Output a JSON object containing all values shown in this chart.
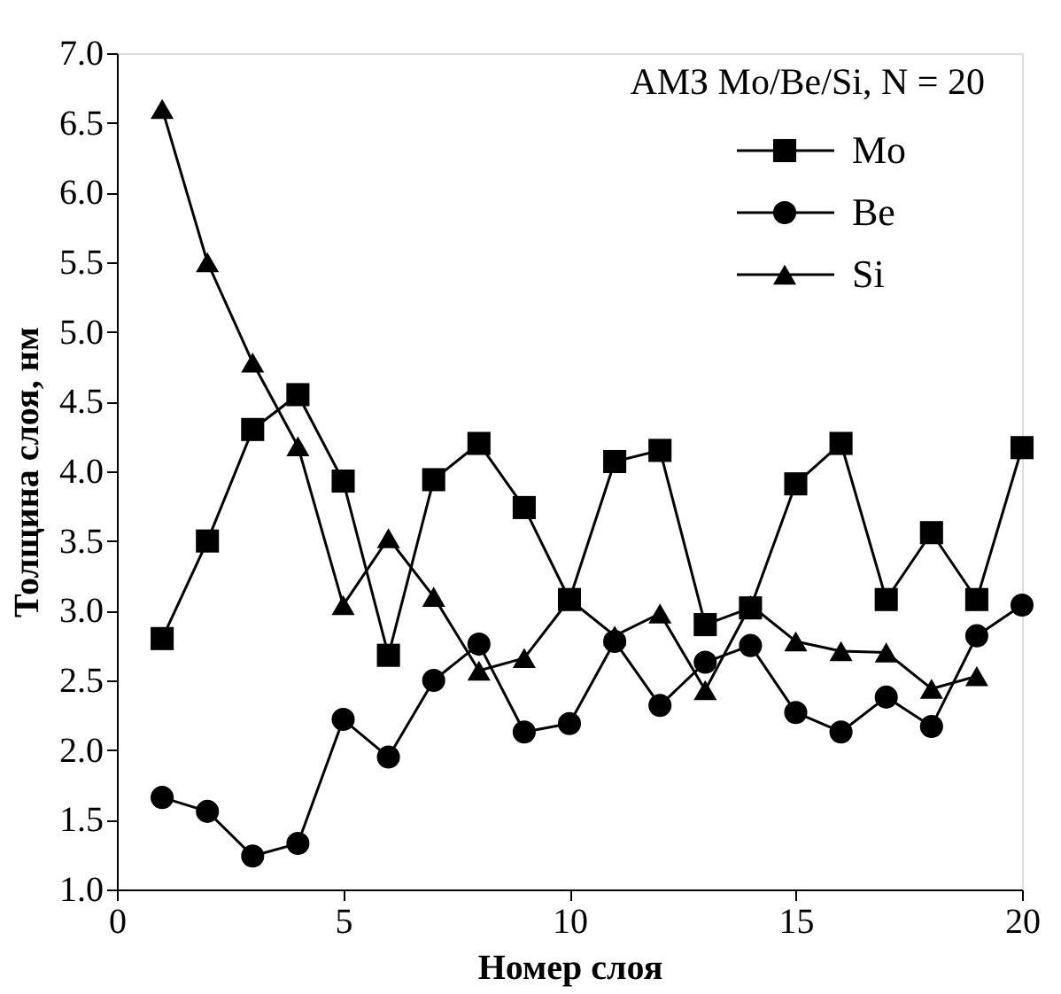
{
  "chart_data": {
    "type": "line",
    "title": "АМЗ Mo/Be/Si, N = 20",
    "xlabel": "Номер слоя",
    "ylabel": "Толщина слоя, нм",
    "x": [
      1,
      2,
      3,
      4,
      5,
      6,
      7,
      8,
      9,
      10,
      11,
      12,
      13,
      14,
      15,
      16,
      17,
      18,
      19,
      20
    ],
    "series": [
      {
        "name": "Mo",
        "color": "#000000",
        "marker": "square",
        "values": [
          2.8,
          3.5,
          4.3,
          4.55,
          3.93,
          2.68,
          3.94,
          4.2,
          3.74,
          3.08,
          4.07,
          4.15,
          2.9,
          3.02,
          3.91,
          4.2,
          3.08,
          3.56,
          3.08,
          4.17
        ]
      },
      {
        "name": "Be",
        "color": "#000000",
        "marker": "circle",
        "values": [
          1.66,
          1.56,
          1.24,
          1.33,
          2.22,
          1.95,
          2.5,
          2.76,
          2.13,
          2.19,
          2.78,
          2.32,
          2.63,
          2.75,
          2.27,
          2.13,
          2.38,
          2.17,
          2.82,
          3.04
        ]
      },
      {
        "name": "Si",
        "color": "#000000",
        "marker": "triangle",
        "values": [
          6.6,
          5.5,
          4.78,
          4.18,
          3.04,
          3.52,
          3.1,
          2.57,
          2.66,
          3.08,
          2.82,
          2.98,
          2.43,
          3.04,
          2.78,
          2.71,
          2.7,
          2.44,
          2.53,
          null
        ]
      }
    ],
    "xlim": [
      0,
      20
    ],
    "xticks": [
      0,
      5,
      10,
      15,
      20
    ],
    "ylim": [
      1.0,
      7.0
    ],
    "yticks": [
      {
        "value": 1,
        "label": "1.0"
      },
      1.5,
      {
        "value": 2,
        "label": "2.0"
      },
      2.5,
      {
        "value": 3,
        "label": "3.0"
      },
      3.5,
      {
        "value": 4,
        "label": "4.0"
      },
      4.5,
      {
        "value": 5,
        "label": "5.0"
      },
      5.5,
      {
        "value": 6,
        "label": "6.0"
      },
      6.5,
      {
        "value": 7,
        "label": "7.0"
      }
    ],
    "grid": false,
    "legend": "top right",
    "line_style": "solid"
  }
}
